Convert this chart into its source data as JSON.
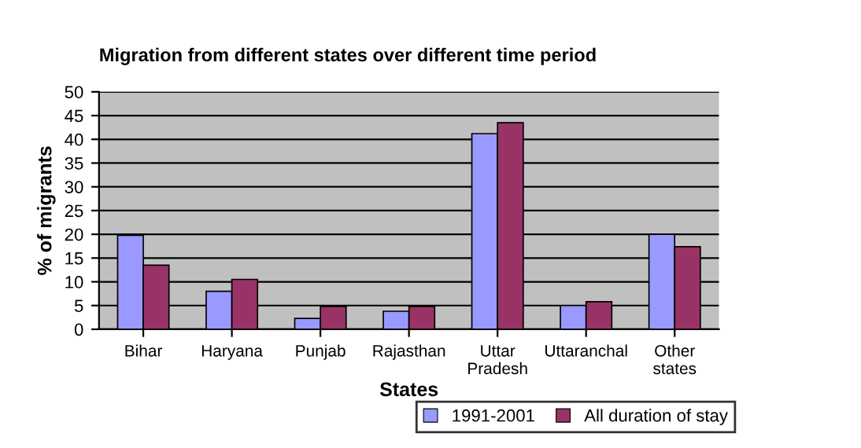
{
  "chart_data": {
    "type": "bar",
    "title": "Migration from different states over different time period",
    "xlabel": "States",
    "ylabel": "% of migrants",
    "categories": [
      "Bihar",
      "Haryana",
      "Punjab",
      "Rajasthan",
      "Uttar\nPradesh",
      "Uttaranchal",
      "Other\nstates"
    ],
    "series": [
      {
        "name": "1991-2001",
        "color": "#9999ff",
        "values": [
          19.8,
          8,
          2.3,
          3.8,
          41.2,
          5,
          20
        ]
      },
      {
        "name": "All duration of stay",
        "color": "#993366",
        "values": [
          13.5,
          10.5,
          4.8,
          4.8,
          43.5,
          5.8,
          17.4
        ]
      }
    ],
    "ylim": [
      0,
      50
    ],
    "yticks": [
      0,
      5,
      10,
      15,
      20,
      25,
      30,
      35,
      40,
      45,
      50
    ],
    "grid": "y",
    "legend": "bottom right"
  }
}
